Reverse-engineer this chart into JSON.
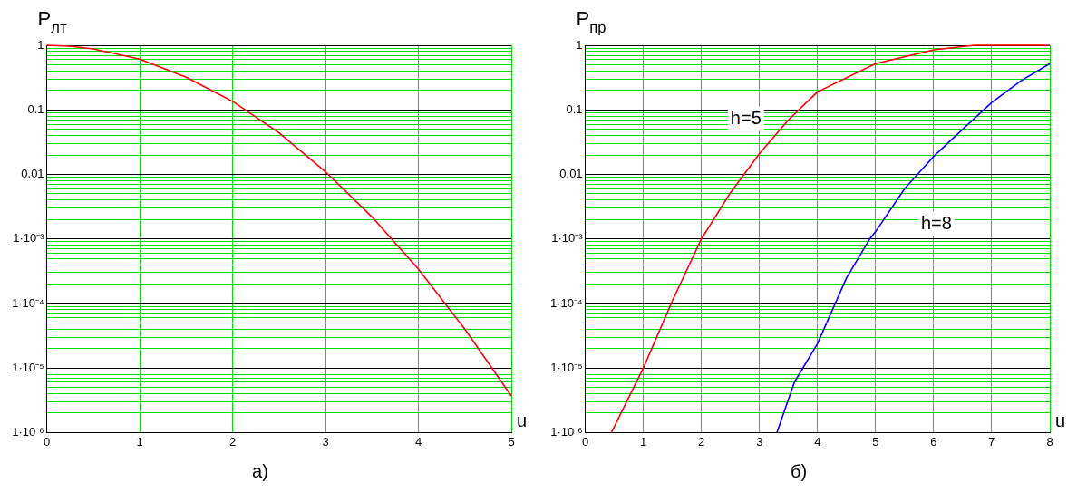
{
  "chart_data": [
    {
      "type": "line",
      "title": "а)",
      "xlabel": "u",
      "ylabel": "P$_{лт}$",
      "log": "y",
      "grid": true,
      "legend": false,
      "marker": "none",
      "line_style": "solid",
      "xlim": [
        0,
        5
      ],
      "xticks": [
        0,
        1,
        2,
        3,
        4,
        5
      ],
      "ylim": [
        1e-06,
        1
      ],
      "yticks": [
        {
          "value": 1e-06,
          "label": "1·10⁻⁶"
        },
        {
          "value": 2e-06,
          "label": null
        },
        {
          "value": 3e-06,
          "label": null
        },
        {
          "value": 4e-06,
          "label": null
        },
        {
          "value": 5e-06,
          "label": null
        },
        {
          "value": 6e-06,
          "label": null
        },
        {
          "value": 7e-06,
          "label": null
        },
        {
          "value": 8e-06,
          "label": null
        },
        {
          "value": 9e-06,
          "label": null
        },
        {
          "value": 1e-05,
          "label": "1·10⁻⁵"
        },
        {
          "value": 2e-05,
          "label": null
        },
        {
          "value": 3e-05,
          "label": null
        },
        {
          "value": 4e-05,
          "label": null
        },
        {
          "value": 5e-05,
          "label": null
        },
        {
          "value": 6e-05,
          "label": null
        },
        {
          "value": 7e-05,
          "label": null
        },
        {
          "value": 8e-05,
          "label": null
        },
        {
          "value": 9e-05,
          "label": null
        },
        {
          "value": 0.0001,
          "label": "1·10⁻⁴"
        },
        {
          "value": 0.0002,
          "label": null
        },
        {
          "value": 0.0003,
          "label": null
        },
        {
          "value": 0.0004,
          "label": null
        },
        {
          "value": 0.0005,
          "label": null
        },
        {
          "value": 0.0006,
          "label": null
        },
        {
          "value": 0.0007,
          "label": null
        },
        {
          "value": 0.0008,
          "label": null
        },
        {
          "value": 0.0009,
          "label": null
        },
        {
          "value": 0.001,
          "label": "1·10⁻³"
        },
        {
          "value": 0.002,
          "label": null
        },
        {
          "value": 0.003,
          "label": null
        },
        {
          "value": 0.004,
          "label": null
        },
        {
          "value": 0.005,
          "label": null
        },
        {
          "value": 0.006,
          "label": null
        },
        {
          "value": 0.007,
          "label": null
        },
        {
          "value": 0.008,
          "label": null
        },
        {
          "value": 0.009,
          "label": null
        },
        {
          "value": 0.01,
          "label": "0.01"
        },
        {
          "value": 0.02,
          "label": null
        },
        {
          "value": 0.03,
          "label": null
        },
        {
          "value": 0.04,
          "label": null
        },
        {
          "value": 0.05,
          "label": null
        },
        {
          "value": 0.06,
          "label": null
        },
        {
          "value": 0.07,
          "label": null
        },
        {
          "value": 0.08,
          "label": null
        },
        {
          "value": 0.09,
          "label": null
        },
        {
          "value": 0.1,
          "label": "0.1"
        },
        {
          "value": 0.2,
          "label": null
        },
        {
          "value": 0.3,
          "label": null
        },
        {
          "value": 0.4,
          "label": null
        },
        {
          "value": 0.5,
          "label": null
        },
        {
          "value": 0.6,
          "label": null
        },
        {
          "value": 0.7,
          "label": null
        },
        {
          "value": 0.8,
          "label": null
        },
        {
          "value": 0.9,
          "label": null
        },
        {
          "value": 1,
          "label": "1"
        }
      ],
      "x": [
        0,
        0.25,
        0.5,
        1,
        1.5,
        2,
        2.5,
        3,
        3.5,
        4,
        4.5,
        5
      ],
      "series": [
        {
          "color": "#ff0000",
          "values": [
            1,
            0.97,
            0.88,
            0.61,
            0.32,
            0.135,
            0.044,
            0.011,
            0.0022,
            0.00034,
            4e-05,
            3.7e-06
          ]
        }
      ]
    },
    {
      "type": "line",
      "title": "б)",
      "xlabel": "u",
      "ylabel": "P$_{пр}$",
      "log": "y",
      "grid": true,
      "legend": false,
      "marker": "none",
      "line_style": "solid",
      "xlim": [
        0,
        8
      ],
      "xticks": [
        0,
        1,
        2,
        3,
        4,
        5,
        6,
        7,
        8
      ],
      "ylim": [
        1e-06,
        1
      ],
      "yticks": [
        {
          "value": 1e-06,
          "label": "1·10⁻⁶"
        },
        {
          "value": 2e-06,
          "label": null
        },
        {
          "value": 3e-06,
          "label": null
        },
        {
          "value": 4e-06,
          "label": null
        },
        {
          "value": 5e-06,
          "label": null
        },
        {
          "value": 6e-06,
          "label": null
        },
        {
          "value": 7e-06,
          "label": null
        },
        {
          "value": 8e-06,
          "label": null
        },
        {
          "value": 9e-06,
          "label": null
        },
        {
          "value": 1e-05,
          "label": "1·10⁻⁵"
        },
        {
          "value": 2e-05,
          "label": null
        },
        {
          "value": 3e-05,
          "label": null
        },
        {
          "value": 4e-05,
          "label": null
        },
        {
          "value": 5e-05,
          "label": null
        },
        {
          "value": 6e-05,
          "label": null
        },
        {
          "value": 7e-05,
          "label": null
        },
        {
          "value": 8e-05,
          "label": null
        },
        {
          "value": 9e-05,
          "label": null
        },
        {
          "value": 0.0001,
          "label": "1·10⁻⁴"
        },
        {
          "value": 0.0002,
          "label": null
        },
        {
          "value": 0.0003,
          "label": null
        },
        {
          "value": 0.0004,
          "label": null
        },
        {
          "value": 0.0005,
          "label": null
        },
        {
          "value": 0.0006,
          "label": null
        },
        {
          "value": 0.0007,
          "label": null
        },
        {
          "value": 0.0008,
          "label": null
        },
        {
          "value": 0.0009,
          "label": null
        },
        {
          "value": 0.001,
          "label": "1·10⁻³"
        },
        {
          "value": 0.002,
          "label": null
        },
        {
          "value": 0.003,
          "label": null
        },
        {
          "value": 0.004,
          "label": null
        },
        {
          "value": 0.005,
          "label": null
        },
        {
          "value": 0.006,
          "label": null
        },
        {
          "value": 0.007,
          "label": null
        },
        {
          "value": 0.008,
          "label": null
        },
        {
          "value": 0.009,
          "label": null
        },
        {
          "value": 0.01,
          "label": "0.01"
        },
        {
          "value": 0.02,
          "label": null
        },
        {
          "value": 0.03,
          "label": null
        },
        {
          "value": 0.04,
          "label": null
        },
        {
          "value": 0.05,
          "label": null
        },
        {
          "value": 0.06,
          "label": null
        },
        {
          "value": 0.07,
          "label": null
        },
        {
          "value": 0.08,
          "label": null
        },
        {
          "value": 0.09,
          "label": null
        },
        {
          "value": 0.1,
          "label": "0.1"
        },
        {
          "value": 0.2,
          "label": null
        },
        {
          "value": 0.3,
          "label": null
        },
        {
          "value": 0.4,
          "label": null
        },
        {
          "value": 0.5,
          "label": null
        },
        {
          "value": 0.6,
          "label": null
        },
        {
          "value": 0.7,
          "label": null
        },
        {
          "value": 0.8,
          "label": null
        },
        {
          "value": 0.9,
          "label": null
        },
        {
          "value": 1,
          "label": "1"
        }
      ],
      "series": [
        {
          "name": "h=5",
          "color": "#ff0000",
          "x": [
            0.45,
            1,
            1.5,
            2,
            2.5,
            3,
            3.5,
            4,
            5,
            6,
            6.7,
            7,
            8
          ],
          "values": [
            1e-06,
            1e-05,
            0.00011,
            0.001,
            0.0052,
            0.021,
            0.07,
            0.19,
            0.52,
            0.85,
            1,
            1,
            1
          ]
        },
        {
          "name": "h=8",
          "color": "#0000ff",
          "x": [
            3.3,
            3.6,
            4,
            4.5,
            4.9,
            5,
            5.5,
            6,
            6.5,
            7,
            7.5,
            8
          ],
          "values": [
            1e-06,
            6e-06,
            2.4e-05,
            0.00025,
            0.001,
            0.0013,
            0.006,
            0.019,
            0.05,
            0.13,
            0.28,
            0.52
          ]
        }
      ]
    }
  ]
}
